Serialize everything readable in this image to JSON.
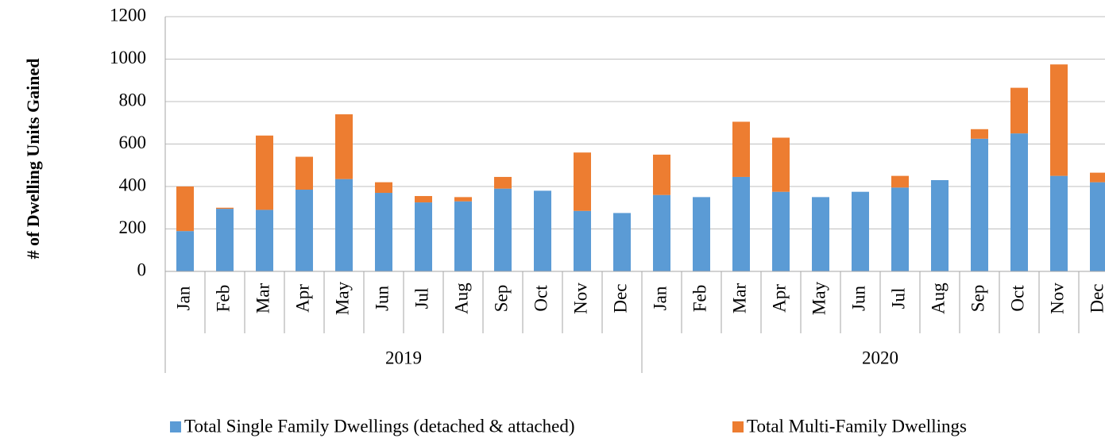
{
  "chart_data": {
    "type": "stacked_bar",
    "y_label": "# of Dwelling Units Gained",
    "categories": [
      "Jan",
      "Feb",
      "Mar",
      "Apr",
      "May",
      "Jun",
      "Jul",
      "Aug",
      "Sep",
      "Oct",
      "Nov",
      "Dec",
      "Jan",
      "Feb",
      "Mar",
      "Apr",
      "May",
      "Jun",
      "Jul",
      "Aug",
      "Sep",
      "Oct",
      "Nov",
      "Dec"
    ],
    "groups": [
      "2019",
      "2020"
    ],
    "series": [
      {
        "name": "Total Single Family Dwellings (detached & attached)",
        "color": "#5b9bd5",
        "values": [
          190,
          295,
          290,
          385,
          435,
          370,
          325,
          330,
          390,
          380,
          285,
          275,
          360,
          350,
          445,
          375,
          350,
          375,
          395,
          430,
          625,
          650,
          450,
          420
        ]
      },
      {
        "name": "Total Multi-Family Dwellings",
        "color": "#ed7d31",
        "values": [
          210,
          5,
          350,
          155,
          305,
          50,
          30,
          20,
          55,
          0,
          275,
          0,
          190,
          0,
          260,
          255,
          0,
          0,
          55,
          0,
          45,
          215,
          525,
          45
        ]
      }
    ],
    "ylim": [
      0,
      1200
    ],
    "yticks": [
      0,
      200,
      400,
      600,
      800,
      1000,
      1200
    ],
    "grid": true
  }
}
